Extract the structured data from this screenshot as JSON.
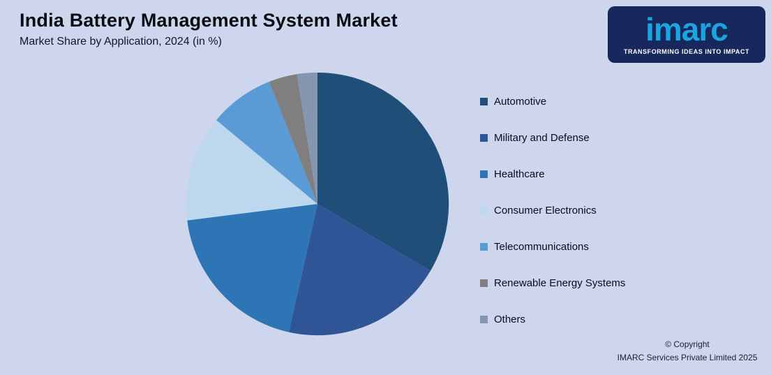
{
  "header": {
    "title": "India Battery Management System Market",
    "subtitle": "Market Share by Application, 2024 (in %)"
  },
  "logo": {
    "wordmark": "imarc",
    "tagline": "TRANSFORMING IDEAS INTO IMPACT"
  },
  "footer": {
    "line1": "© Copyright",
    "line2": "IMARC Services Private Limited 2025"
  },
  "chart_data": {
    "type": "pie",
    "title": "India Battery Management System Market",
    "subtitle": "Market Share by Application, 2024 (in %)",
    "unit": "%",
    "legend_position": "right",
    "start_angle_deg": 0,
    "direction": "clockwise",
    "background_color": "#cdd6ec",
    "series": [
      {
        "name": "Automotive",
        "value": 33.5,
        "color": "#1f4e79"
      },
      {
        "name": "Military and Defense",
        "value": 20,
        "color": "#2f5597"
      },
      {
        "name": "Healthcare",
        "value": 19.5,
        "color": "#2e75b6"
      },
      {
        "name": "Consumer Electronics",
        "value": 13,
        "color": "#bdd7ee"
      },
      {
        "name": "Telecommunications",
        "value": 8,
        "color": "#5b9bd5"
      },
      {
        "name": "Renewable Energy Systems",
        "value": 3.5,
        "color": "#7f7f7f"
      },
      {
        "name": "Others",
        "value": 2.5,
        "color": "#8496b0"
      }
    ]
  }
}
